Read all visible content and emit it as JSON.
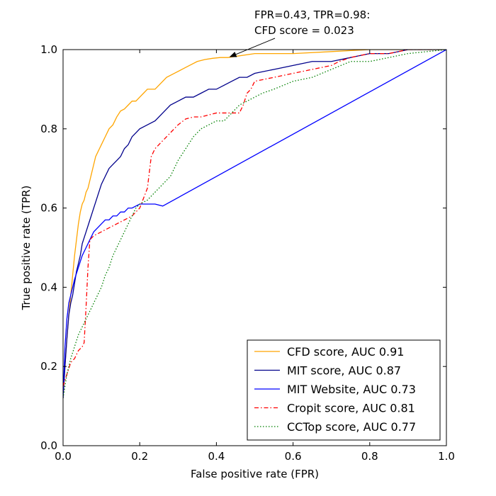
{
  "chart_data": {
    "type": "line",
    "title": "",
    "xlabel": "False positive rate (FPR)",
    "ylabel": "True positive rate (TPR)",
    "xlim": [
      0,
      1
    ],
    "ylim": [
      0,
      1
    ],
    "xticks": [
      0.0,
      0.2,
      0.4,
      0.6,
      0.8,
      1.0
    ],
    "yticks": [
      0.0,
      0.2,
      0.4,
      0.6,
      0.8,
      1.0
    ],
    "xtick_labels": [
      "0.0",
      "0.2",
      "0.4",
      "0.6",
      "0.8",
      "1.0"
    ],
    "ytick_labels": [
      "0.0",
      "0.2",
      "0.4",
      "0.6",
      "0.8",
      "1.0"
    ],
    "grid": false,
    "legend_position": "bottom-right",
    "series": [
      {
        "name": "CFD score, AUC 0.91",
        "color": "#FFA500",
        "dash": "solid",
        "x": [
          0,
          0.005,
          0.01,
          0.015,
          0.02,
          0.025,
          0.03,
          0.035,
          0.04,
          0.045,
          0.05,
          0.055,
          0.06,
          0.065,
          0.07,
          0.075,
          0.08,
          0.085,
          0.09,
          0.095,
          0.1,
          0.11,
          0.12,
          0.13,
          0.14,
          0.15,
          0.16,
          0.17,
          0.18,
          0.19,
          0.2,
          0.21,
          0.22,
          0.23,
          0.24,
          0.25,
          0.27,
          0.29,
          0.31,
          0.33,
          0.35,
          0.37,
          0.39,
          0.41,
          0.43,
          0.5,
          0.6,
          0.7,
          0.8,
          0.9,
          1.0
        ],
        "y": [
          0.12,
          0.2,
          0.27,
          0.33,
          0.38,
          0.43,
          0.48,
          0.52,
          0.56,
          0.59,
          0.61,
          0.62,
          0.64,
          0.65,
          0.67,
          0.69,
          0.71,
          0.73,
          0.74,
          0.75,
          0.76,
          0.78,
          0.8,
          0.81,
          0.83,
          0.845,
          0.85,
          0.86,
          0.87,
          0.87,
          0.88,
          0.89,
          0.9,
          0.9,
          0.9,
          0.91,
          0.93,
          0.94,
          0.95,
          0.96,
          0.97,
          0.975,
          0.978,
          0.98,
          0.98,
          0.99,
          0.99,
          0.995,
          1.0,
          1.0,
          1.0
        ]
      },
      {
        "name": "MIT score, AUC 0.87",
        "color": "#00008B",
        "dash": "solid",
        "x": [
          0,
          0.005,
          0.01,
          0.015,
          0.02,
          0.025,
          0.03,
          0.035,
          0.04,
          0.045,
          0.05,
          0.06,
          0.07,
          0.08,
          0.09,
          0.1,
          0.11,
          0.12,
          0.13,
          0.14,
          0.15,
          0.16,
          0.17,
          0.18,
          0.19,
          0.2,
          0.22,
          0.24,
          0.26,
          0.28,
          0.3,
          0.32,
          0.34,
          0.36,
          0.38,
          0.4,
          0.42,
          0.44,
          0.46,
          0.48,
          0.5,
          0.55,
          0.6,
          0.65,
          0.7,
          0.75,
          0.8,
          0.85,
          0.9,
          1.0
        ],
        "y": [
          0.12,
          0.2,
          0.27,
          0.33,
          0.36,
          0.38,
          0.41,
          0.44,
          0.46,
          0.48,
          0.51,
          0.54,
          0.57,
          0.6,
          0.63,
          0.66,
          0.68,
          0.7,
          0.71,
          0.72,
          0.73,
          0.75,
          0.76,
          0.78,
          0.79,
          0.8,
          0.81,
          0.82,
          0.84,
          0.86,
          0.87,
          0.88,
          0.88,
          0.89,
          0.9,
          0.9,
          0.91,
          0.92,
          0.93,
          0.93,
          0.94,
          0.95,
          0.96,
          0.97,
          0.97,
          0.98,
          0.99,
          0.99,
          1.0,
          1.0
        ]
      },
      {
        "name": "MIT Website, AUC 0.73",
        "color": "#0000FF",
        "dash": "solid",
        "x": [
          0,
          0.005,
          0.01,
          0.015,
          0.02,
          0.03,
          0.04,
          0.05,
          0.06,
          0.07,
          0.08,
          0.09,
          0.1,
          0.11,
          0.12,
          0.13,
          0.14,
          0.15,
          0.16,
          0.17,
          0.18,
          0.2,
          0.22,
          0.24,
          0.26,
          1.0
        ],
        "y": [
          0.12,
          0.25,
          0.32,
          0.36,
          0.38,
          0.42,
          0.45,
          0.48,
          0.5,
          0.52,
          0.54,
          0.55,
          0.56,
          0.57,
          0.57,
          0.58,
          0.58,
          0.59,
          0.59,
          0.6,
          0.6,
          0.61,
          0.61,
          0.61,
          0.605,
          1.0
        ]
      },
      {
        "name": "Cropit score, AUC 0.81",
        "color": "#FF0000",
        "dash": "dashdot",
        "x": [
          0,
          0.01,
          0.02,
          0.03,
          0.04,
          0.05,
          0.055,
          0.06,
          0.065,
          0.07,
          0.08,
          0.1,
          0.12,
          0.14,
          0.16,
          0.18,
          0.2,
          0.22,
          0.23,
          0.24,
          0.26,
          0.28,
          0.3,
          0.32,
          0.34,
          0.36,
          0.38,
          0.4,
          0.42,
          0.44,
          0.46,
          0.47,
          0.48,
          0.49,
          0.5,
          0.55,
          0.6,
          0.65,
          0.7,
          0.72,
          0.75,
          0.8,
          0.85,
          0.9,
          1.0
        ],
        "y": [
          0.15,
          0.18,
          0.21,
          0.22,
          0.24,
          0.25,
          0.26,
          0.35,
          0.45,
          0.52,
          0.53,
          0.54,
          0.55,
          0.56,
          0.57,
          0.58,
          0.6,
          0.65,
          0.73,
          0.75,
          0.77,
          0.79,
          0.81,
          0.825,
          0.83,
          0.83,
          0.835,
          0.84,
          0.84,
          0.84,
          0.84,
          0.86,
          0.89,
          0.9,
          0.92,
          0.93,
          0.94,
          0.95,
          0.96,
          0.97,
          0.98,
          0.99,
          0.99,
          1.0,
          1.0
        ]
      },
      {
        "name": "CCTop score, AUC 0.77",
        "color": "#008000",
        "dash": "dotted",
        "x": [
          0,
          0.01,
          0.02,
          0.03,
          0.04,
          0.05,
          0.06,
          0.07,
          0.08,
          0.09,
          0.1,
          0.11,
          0.12,
          0.13,
          0.14,
          0.15,
          0.16,
          0.17,
          0.18,
          0.19,
          0.2,
          0.22,
          0.24,
          0.26,
          0.28,
          0.3,
          0.32,
          0.34,
          0.36,
          0.38,
          0.4,
          0.42,
          0.44,
          0.46,
          0.48,
          0.5,
          0.52,
          0.55,
          0.6,
          0.65,
          0.7,
          0.75,
          0.8,
          0.85,
          0.9,
          1.0
        ],
        "y": [
          0.12,
          0.18,
          0.22,
          0.25,
          0.28,
          0.3,
          0.32,
          0.34,
          0.36,
          0.38,
          0.4,
          0.43,
          0.45,
          0.48,
          0.5,
          0.52,
          0.54,
          0.56,
          0.58,
          0.6,
          0.61,
          0.62,
          0.64,
          0.66,
          0.68,
          0.72,
          0.75,
          0.78,
          0.8,
          0.81,
          0.82,
          0.82,
          0.84,
          0.86,
          0.87,
          0.88,
          0.89,
          0.9,
          0.92,
          0.93,
          0.95,
          0.97,
          0.97,
          0.98,
          0.99,
          1.0
        ]
      }
    ],
    "annotation": {
      "line1": "FPR=0.43, TPR=0.98:",
      "line2": "CFD score = 0.023",
      "point_x": 0.43,
      "point_y": 0.98,
      "text_x": 0.5,
      "text_y": 1.08
    }
  }
}
